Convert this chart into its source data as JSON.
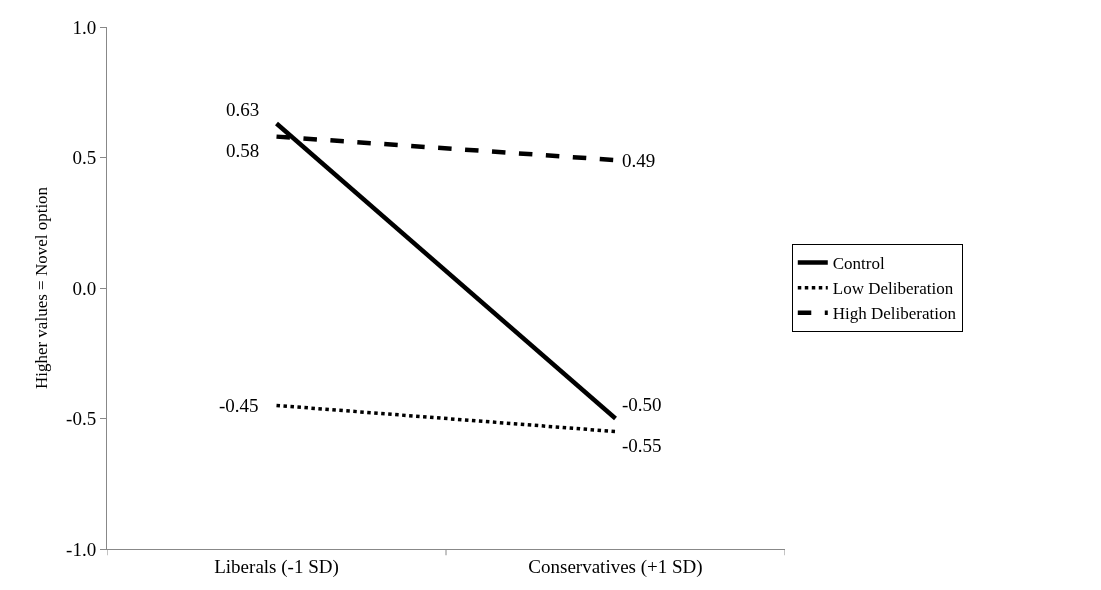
{
  "chart_data": {
    "type": "line",
    "ylabel": "Higher values = Novel option",
    "categories": [
      "Liberals (-1 SD)",
      "Conservatives (+1 SD)"
    ],
    "series": [
      {
        "name": "Control",
        "color": "#000000",
        "line_style": "solid",
        "values": [
          0.63,
          -0.5
        ],
        "value_labels": [
          "0.63",
          "-0.50"
        ]
      },
      {
        "name": "Low Deliberation",
        "color": "#000000",
        "line_style": "dotted",
        "values": [
          -0.45,
          -0.55
        ],
        "value_labels": [
          "-0.45",
          "-0.55"
        ]
      },
      {
        "name": "High Deliberation",
        "color": "#000000",
        "line_style": "dashed",
        "values": [
          0.58,
          0.49
        ],
        "value_labels": [
          "0.58",
          "0.49"
        ]
      }
    ],
    "ylim": [
      -1.0,
      1.0
    ],
    "yticks": [
      {
        "value": -1.0,
        "label": "-1.0"
      },
      {
        "value": -0.5,
        "label": "-0.5"
      },
      {
        "value": 0.0,
        "label": "0.0"
      },
      {
        "value": 0.5,
        "label": "0.5"
      },
      {
        "value": 1.0,
        "label": "1.0"
      }
    ],
    "grid": false,
    "legend": "right",
    "marker": "none"
  }
}
